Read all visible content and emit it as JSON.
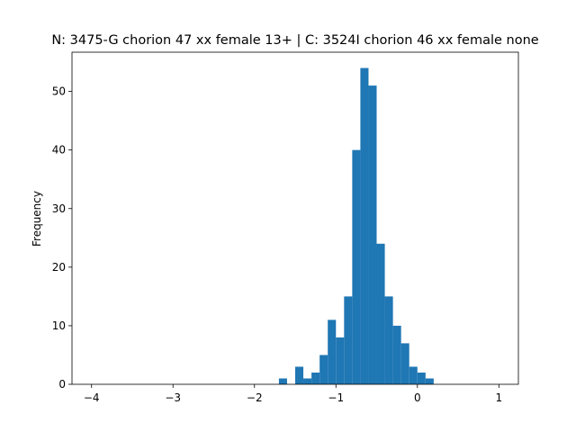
{
  "chart_data": {
    "type": "bar",
    "title": "N: 3475-G chorion 47 xx female 13+ | C: 3524I chorion 46 xx female none",
    "xlabel": "",
    "ylabel": "Frequency",
    "xlim": [
      -4.24,
      1.24
    ],
    "ylim": [
      0,
      56.7
    ],
    "xticks": [
      -4,
      -3,
      -2,
      -1,
      0,
      1
    ],
    "xtick_labels": [
      "−4",
      "−3",
      "−2",
      "−1",
      "0",
      "1"
    ],
    "yticks": [
      0,
      10,
      20,
      30,
      40,
      50
    ],
    "ytick_labels": [
      "0",
      "10",
      "20",
      "30",
      "40",
      "50"
    ],
    "bar_color": "#1f77b4",
    "grid": false,
    "bins": [
      {
        "x0": -1.7,
        "x1": -1.6,
        "count": 1
      },
      {
        "x0": -1.5,
        "x1": -1.4,
        "count": 3
      },
      {
        "x0": -1.4,
        "x1": -1.3,
        "count": 1
      },
      {
        "x0": -1.3,
        "x1": -1.2,
        "count": 2
      },
      {
        "x0": -1.2,
        "x1": -1.1,
        "count": 5
      },
      {
        "x0": -1.1,
        "x1": -1.0,
        "count": 11
      },
      {
        "x0": -1.0,
        "x1": -0.9,
        "count": 8
      },
      {
        "x0": -0.9,
        "x1": -0.8,
        "count": 15
      },
      {
        "x0": -0.8,
        "x1": -0.7,
        "count": 40
      },
      {
        "x0": -0.7,
        "x1": -0.6,
        "count": 54
      },
      {
        "x0": -0.6,
        "x1": -0.5,
        "count": 51
      },
      {
        "x0": -0.5,
        "x1": -0.4,
        "count": 24
      },
      {
        "x0": -0.4,
        "x1": -0.3,
        "count": 15
      },
      {
        "x0": -0.3,
        "x1": -0.2,
        "count": 10
      },
      {
        "x0": -0.2,
        "x1": -0.1,
        "count": 7
      },
      {
        "x0": -0.1,
        "x1": 0.0,
        "count": 3
      },
      {
        "x0": 0.0,
        "x1": 0.1,
        "count": 2
      },
      {
        "x0": 0.1,
        "x1": 0.2,
        "count": 1
      }
    ]
  }
}
